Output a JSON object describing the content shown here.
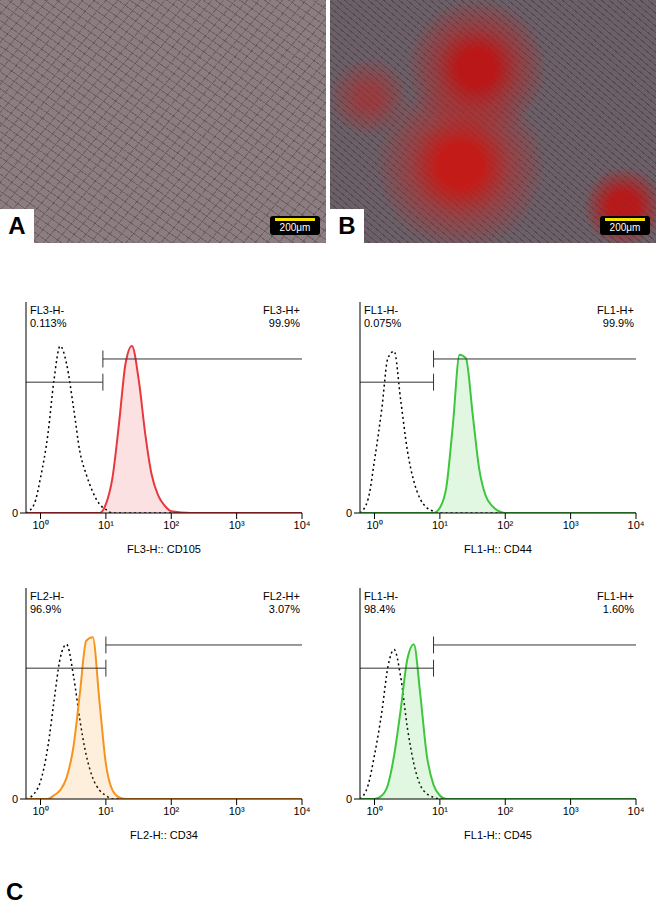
{
  "panels": [
    {
      "label": "A",
      "scale_bar": "200μm"
    },
    {
      "label": "B",
      "scale_bar": "200μm"
    }
  ],
  "figure_label": "C",
  "chart_data": [
    {
      "type": "area",
      "x_label": "FL3-H:: CD105",
      "log": "x",
      "xlim": [
        0.6,
        10000
      ],
      "xticks": [
        {
          "value": 1,
          "label": "10⁰"
        },
        {
          "value": 10,
          "label": "10¹"
        },
        {
          "value": 100,
          "label": "10²"
        },
        {
          "value": 1000,
          "label": "10³"
        },
        {
          "value": 10000,
          "label": "10⁴"
        }
      ],
      "ylim": [
        0,
        120
      ],
      "yticks": [
        0
      ],
      "x": [
        0.6,
        0.8,
        1,
        1.3,
        1.6,
        2,
        2.5,
        3.2,
        4,
        5,
        6.3,
        8,
        10,
        12.6,
        15.8,
        20,
        25,
        32,
        40,
        50,
        63,
        80,
        100,
        200,
        1000,
        10000
      ],
      "series": [
        {
          "color": "#000000",
          "line_style": "dotted",
          "values": [
            0,
            5,
            20,
            45,
            75,
            95,
            85,
            60,
            35,
            22,
            12,
            5,
            2,
            0,
            0,
            0,
            0,
            0,
            0,
            0,
            0,
            0,
            0,
            0,
            0,
            0
          ]
        },
        {
          "color": "#e8383d",
          "line_style": "solid",
          "values": [
            0,
            0,
            0,
            0,
            0,
            0,
            0,
            0,
            0,
            0,
            0,
            0,
            5,
            20,
            50,
            85,
            95,
            75,
            45,
            22,
            10,
            4,
            1,
            0,
            0,
            0
          ]
        }
      ],
      "threshold": 9,
      "gates": [
        {
          "name": "FL3-H-",
          "value": 0.113,
          "label": "0.113%"
        },
        {
          "name": "FL3-H+",
          "value": 99.9,
          "label": "99.9%"
        }
      ]
    },
    {
      "type": "area",
      "x_label": "FL1-H:: CD44",
      "log": "x",
      "xlim": [
        0.6,
        10000
      ],
      "xticks": [
        {
          "value": 1,
          "label": "10⁰"
        },
        {
          "value": 10,
          "label": "10¹"
        },
        {
          "value": 100,
          "label": "10²"
        },
        {
          "value": 1000,
          "label": "10³"
        },
        {
          "value": 10000,
          "label": "10⁴"
        }
      ],
      "ylim": [
        0,
        120
      ],
      "yticks": [
        0
      ],
      "x": [
        0.6,
        0.8,
        1,
        1.3,
        1.6,
        2,
        2.5,
        3.2,
        4,
        5,
        6.3,
        8,
        10,
        12.6,
        15.8,
        20,
        25,
        32,
        40,
        50,
        63,
        80,
        100,
        200,
        1000,
        10000
      ],
      "series": [
        {
          "color": "#000000",
          "line_style": "dotted",
          "values": [
            0,
            8,
            30,
            60,
            88,
            92,
            65,
            35,
            18,
            8,
            3,
            1,
            0,
            0,
            0,
            0,
            0,
            0,
            0,
            0,
            0,
            0,
            0,
            0,
            0,
            0
          ]
        },
        {
          "color": "#3ec63e",
          "line_style": "solid",
          "values": [
            0,
            0,
            0,
            0,
            0,
            0,
            0,
            0,
            0,
            0,
            0,
            0,
            3,
            15,
            50,
            90,
            88,
            55,
            25,
            10,
            4,
            1,
            0,
            0,
            0,
            0
          ]
        }
      ],
      "threshold": 8,
      "gates": [
        {
          "name": "FL1-H-",
          "value": 0.075,
          "label": "0.075%"
        },
        {
          "name": "FL1-H+",
          "value": 99.9,
          "label": "99.9%"
        }
      ]
    },
    {
      "type": "area",
      "x_label": "FL2-H:: CD34",
      "log": "x",
      "xlim": [
        0.6,
        10000
      ],
      "xticks": [
        {
          "value": 1,
          "label": "10⁰"
        },
        {
          "value": 10,
          "label": "10¹"
        },
        {
          "value": 100,
          "label": "10²"
        },
        {
          "value": 1000,
          "label": "10³"
        },
        {
          "value": 10000,
          "label": "10⁴"
        }
      ],
      "ylim": [
        0,
        120
      ],
      "yticks": [
        0
      ],
      "x": [
        0.6,
        0.8,
        1,
        1.3,
        1.6,
        2,
        2.5,
        3.2,
        4,
        5,
        6.3,
        8,
        10,
        12.6,
        15.8,
        20,
        25,
        32,
        40,
        50,
        63,
        80,
        100,
        200,
        1000,
        10000
      ],
      "series": [
        {
          "color": "#000000",
          "line_style": "dotted",
          "values": [
            0,
            3,
            10,
            30,
            55,
            80,
            88,
            70,
            45,
            25,
            12,
            5,
            2,
            0,
            0,
            0,
            0,
            0,
            0,
            0,
            0,
            0,
            0,
            0,
            0,
            0
          ]
        },
        {
          "color": "#f7941d",
          "line_style": "solid",
          "values": [
            0,
            0,
            0,
            0,
            2,
            5,
            12,
            30,
            60,
            90,
            92,
            55,
            20,
            5,
            1,
            0,
            0,
            0,
            0,
            0,
            0,
            0,
            0,
            0,
            0,
            0
          ]
        }
      ],
      "threshold": 10,
      "gates": [
        {
          "name": "FL2-H-",
          "value": 96.9,
          "label": "96.9%"
        },
        {
          "name": "FL2-H+",
          "value": 3.07,
          "label": "3.07%"
        }
      ]
    },
    {
      "type": "area",
      "x_label": "FL1-H:: CD45",
      "log": "x",
      "xlim": [
        0.6,
        10000
      ],
      "xticks": [
        {
          "value": 1,
          "label": "10⁰"
        },
        {
          "value": 10,
          "label": "10¹"
        },
        {
          "value": 100,
          "label": "10²"
        },
        {
          "value": 1000,
          "label": "10³"
        },
        {
          "value": 10000,
          "label": "10⁴"
        }
      ],
      "ylim": [
        0,
        120
      ],
      "yticks": [
        0
      ],
      "x": [
        0.6,
        0.8,
        1,
        1.3,
        1.6,
        2,
        2.5,
        3.2,
        4,
        5,
        6.3,
        8,
        10,
        12.6,
        15.8,
        20,
        25,
        32,
        40,
        50,
        63,
        80,
        100,
        200,
        1000,
        10000
      ],
      "series": [
        {
          "color": "#000000",
          "line_style": "dotted",
          "values": [
            0,
            8,
            25,
            50,
            75,
            85,
            70,
            40,
            20,
            8,
            3,
            1,
            0,
            0,
            0,
            0,
            0,
            0,
            0,
            0,
            0,
            0,
            0,
            0,
            0,
            0
          ]
        },
        {
          "color": "#3ec63e",
          "line_style": "solid",
          "values": [
            0,
            0,
            0,
            2,
            8,
            25,
            50,
            80,
            88,
            60,
            25,
            8,
            2,
            0,
            0,
            0,
            0,
            0,
            0,
            0,
            0,
            0,
            0,
            0,
            0,
            0
          ]
        }
      ],
      "threshold": 8,
      "gates": [
        {
          "name": "FL1-H-",
          "value": 98.4,
          "label": "98.4%"
        },
        {
          "name": "FL1-H+",
          "value": 1.6,
          "label": "1.60%"
        }
      ]
    }
  ]
}
